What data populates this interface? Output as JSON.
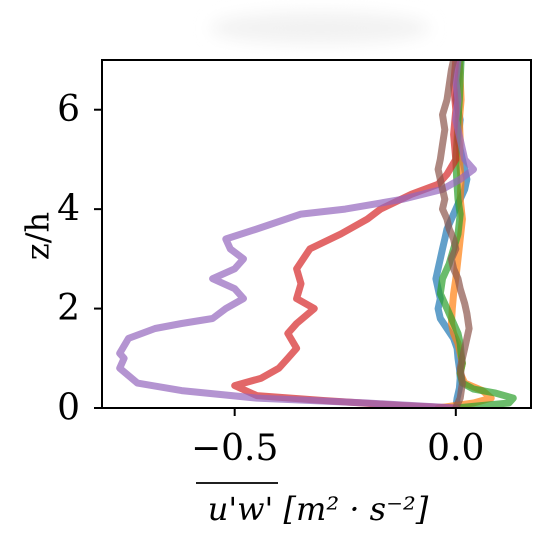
{
  "chart_data": {
    "type": "line",
    "title": "",
    "xlabel": "u'w' [m² · s⁻²]",
    "ylabel": "z/h",
    "xlim": [
      -0.8,
      0.17
    ],
    "ylim": [
      0,
      7
    ],
    "xticks": [
      {
        "value": -0.5,
        "label": "−0.5"
      },
      {
        "value": 0.0,
        "label": "0.0"
      }
    ],
    "yticks": [
      {
        "value": 0,
        "label": "0"
      },
      {
        "value": 2,
        "label": "2"
      },
      {
        "value": 4,
        "label": "4"
      },
      {
        "value": 6,
        "label": "6"
      }
    ],
    "grid": false,
    "legend": "none",
    "series": [
      {
        "color": "#1f77b4",
        "points": [
          [
            0.0,
            0.0
          ],
          [
            0.003,
            0.2
          ],
          [
            0.008,
            0.4
          ],
          [
            0.01,
            0.6
          ],
          [
            0.008,
            0.8
          ],
          [
            0.005,
            1.0
          ],
          [
            0.003,
            1.2
          ],
          [
            -0.005,
            1.4
          ],
          [
            -0.02,
            1.6
          ],
          [
            -0.035,
            1.8
          ],
          [
            -0.04,
            2.0
          ],
          [
            -0.035,
            2.2
          ],
          [
            -0.04,
            2.4
          ],
          [
            -0.045,
            2.6
          ],
          [
            -0.04,
            2.8
          ],
          [
            -0.035,
            3.0
          ],
          [
            -0.03,
            3.2
          ],
          [
            -0.025,
            3.4
          ],
          [
            -0.02,
            3.6
          ],
          [
            -0.01,
            3.8
          ],
          [
            0.0,
            4.0
          ],
          [
            0.01,
            4.2
          ],
          [
            0.02,
            4.4
          ],
          [
            0.025,
            4.6
          ],
          [
            0.015,
            5.0
          ],
          [
            0.005,
            5.4
          ],
          [
            0.01,
            5.8
          ],
          [
            0.0,
            6.2
          ],
          [
            0.005,
            6.6
          ],
          [
            0.01,
            7.0
          ]
        ]
      },
      {
        "color": "#ff7f0e",
        "points": [
          [
            -0.04,
            0.0
          ],
          [
            0.0,
            0.05
          ],
          [
            0.04,
            0.1
          ],
          [
            0.08,
            0.2
          ],
          [
            0.06,
            0.35
          ],
          [
            0.02,
            0.5
          ],
          [
            0.01,
            0.7
          ],
          [
            0.015,
            0.9
          ],
          [
            0.01,
            1.1
          ],
          [
            0.005,
            1.3
          ],
          [
            -0.005,
            1.5
          ],
          [
            -0.01,
            1.7
          ],
          [
            -0.008,
            2.0
          ],
          [
            -0.005,
            2.3
          ],
          [
            0.0,
            2.6
          ],
          [
            0.005,
            3.0
          ],
          [
            0.01,
            3.4
          ],
          [
            0.015,
            3.8
          ],
          [
            0.01,
            4.2
          ],
          [
            0.012,
            4.6
          ],
          [
            0.008,
            5.0
          ],
          [
            0.01,
            5.4
          ],
          [
            0.008,
            5.8
          ],
          [
            0.012,
            6.2
          ],
          [
            0.01,
            6.6
          ],
          [
            0.008,
            7.0
          ]
        ]
      },
      {
        "color": "#2ca02c",
        "points": [
          [
            0.0,
            0.0
          ],
          [
            0.06,
            0.05
          ],
          [
            0.12,
            0.1
          ],
          [
            0.13,
            0.2
          ],
          [
            0.09,
            0.3
          ],
          [
            0.04,
            0.38
          ],
          [
            0.015,
            0.5
          ],
          [
            0.01,
            0.7
          ],
          [
            0.015,
            0.9
          ],
          [
            0.012,
            1.1
          ],
          [
            0.01,
            1.3
          ],
          [
            0.005,
            1.5
          ],
          [
            -0.005,
            1.7
          ],
          [
            -0.02,
            2.0
          ],
          [
            -0.035,
            2.3
          ],
          [
            -0.03,
            2.6
          ],
          [
            -0.015,
            2.9
          ],
          [
            -0.005,
            3.2
          ],
          [
            0.005,
            3.5
          ],
          [
            0.01,
            3.9
          ],
          [
            0.005,
            4.2
          ],
          [
            0.002,
            4.6
          ],
          [
            0.0,
            5.0
          ],
          [
            0.003,
            5.4
          ],
          [
            0.005,
            5.8
          ],
          [
            0.008,
            6.2
          ],
          [
            0.01,
            6.6
          ],
          [
            0.012,
            7.0
          ]
        ]
      },
      {
        "color": "#d62728",
        "points": [
          [
            0.0,
            0.0
          ],
          [
            -0.12,
            0.05
          ],
          [
            -0.3,
            0.15
          ],
          [
            -0.45,
            0.25
          ],
          [
            -0.5,
            0.45
          ],
          [
            -0.44,
            0.6
          ],
          [
            -0.4,
            0.8
          ],
          [
            -0.38,
            1.0
          ],
          [
            -0.36,
            1.2
          ],
          [
            -0.38,
            1.5
          ],
          [
            -0.36,
            1.7
          ],
          [
            -0.32,
            2.0
          ],
          [
            -0.36,
            2.2
          ],
          [
            -0.35,
            2.5
          ],
          [
            -0.36,
            2.8
          ],
          [
            -0.33,
            3.2
          ],
          [
            -0.26,
            3.5
          ],
          [
            -0.2,
            3.8
          ],
          [
            -0.17,
            4.0
          ],
          [
            -0.1,
            4.3
          ],
          [
            -0.04,
            4.5
          ],
          [
            -0.02,
            4.7
          ],
          [
            0.0,
            5.0
          ],
          [
            -0.005,
            5.5
          ],
          [
            0.0,
            6.0
          ],
          [
            -0.005,
            6.5
          ],
          [
            0.0,
            7.0
          ]
        ]
      },
      {
        "color": "#9467bd",
        "points": [
          [
            0.0,
            0.0
          ],
          [
            -0.2,
            0.1
          ],
          [
            -0.45,
            0.2
          ],
          [
            -0.62,
            0.35
          ],
          [
            -0.72,
            0.5
          ],
          [
            -0.76,
            0.8
          ],
          [
            -0.75,
            1.0
          ],
          [
            -0.76,
            1.1
          ],
          [
            -0.74,
            1.4
          ],
          [
            -0.68,
            1.6
          ],
          [
            -0.62,
            1.7
          ],
          [
            -0.55,
            1.8
          ],
          [
            -0.52,
            2.0
          ],
          [
            -0.48,
            2.2
          ],
          [
            -0.5,
            2.4
          ],
          [
            -0.55,
            2.6
          ],
          [
            -0.5,
            2.8
          ],
          [
            -0.48,
            3.0
          ],
          [
            -0.51,
            3.2
          ],
          [
            -0.52,
            3.4
          ],
          [
            -0.45,
            3.6
          ],
          [
            -0.35,
            3.9
          ],
          [
            -0.25,
            4.0
          ],
          [
            -0.12,
            4.2
          ],
          [
            -0.03,
            4.4
          ],
          [
            0.01,
            4.6
          ],
          [
            0.04,
            4.8
          ],
          [
            0.02,
            5.0
          ],
          [
            0.01,
            5.4
          ],
          [
            0.0,
            5.8
          ],
          [
            0.005,
            6.2
          ],
          [
            0.0,
            6.6
          ],
          [
            0.005,
            7.0
          ]
        ]
      },
      {
        "color": "#8c564b",
        "points": [
          [
            0.0,
            0.0
          ],
          [
            0.01,
            0.2
          ],
          [
            0.015,
            0.5
          ],
          [
            0.01,
            0.8
          ],
          [
            0.015,
            1.0
          ],
          [
            0.02,
            1.2
          ],
          [
            0.025,
            1.4
          ],
          [
            0.03,
            1.6
          ],
          [
            0.025,
            1.9
          ],
          [
            0.02,
            2.1
          ],
          [
            0.01,
            2.4
          ],
          [
            0.005,
            2.6
          ],
          [
            -0.005,
            2.8
          ],
          [
            -0.01,
            3.0
          ],
          [
            0.0,
            3.2
          ],
          [
            -0.005,
            3.4
          ],
          [
            -0.015,
            3.6
          ],
          [
            -0.02,
            3.8
          ],
          [
            -0.03,
            4.0
          ],
          [
            -0.025,
            4.2
          ],
          [
            -0.03,
            4.4
          ],
          [
            -0.035,
            4.6
          ],
          [
            -0.04,
            4.8
          ],
          [
            -0.035,
            5.0
          ],
          [
            -0.03,
            5.3
          ],
          [
            -0.025,
            5.6
          ],
          [
            -0.03,
            5.9
          ],
          [
            -0.02,
            6.2
          ],
          [
            -0.015,
            6.5
          ],
          [
            -0.01,
            6.8
          ],
          [
            -0.005,
            7.0
          ]
        ]
      }
    ]
  }
}
